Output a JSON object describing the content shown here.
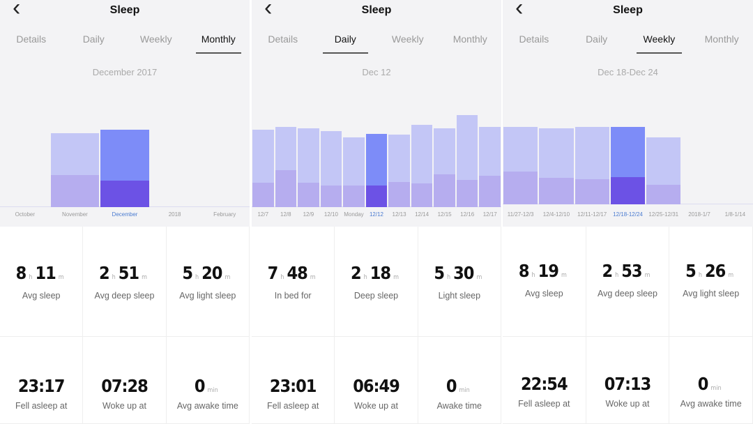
{
  "colors": {
    "light": "#c3c6f6",
    "deep": "#b6adef",
    "sel_light": "#7d8cf8",
    "sel_deep": "#6c52e5"
  },
  "panels": [
    {
      "title": "Sleep",
      "tabs": [
        "Details",
        "Daily",
        "Weekly",
        "Monthly"
      ],
      "active": 3,
      "date": "December 2017",
      "bars": [
        {
          "label": "October",
          "total": 0,
          "deep": 0
        },
        {
          "label": "November",
          "total": 7.85,
          "deep": 3.4
        },
        {
          "label": "December",
          "total": 8.2,
          "deep": 2.85,
          "selected": true
        },
        {
          "label": "2018",
          "total": 0,
          "deep": 0
        },
        {
          "label": "February",
          "total": 0,
          "deep": 0
        }
      ],
      "stats": [
        {
          "h": "8",
          "m": "11",
          "label": "Avg sleep"
        },
        {
          "h": "2",
          "m": "51",
          "label": "Avg deep sleep"
        },
        {
          "h": "5",
          "m": "20",
          "label": "Avg light sleep"
        },
        {
          "time": "23:17",
          "label": "Fell asleep at"
        },
        {
          "time": "07:28",
          "label": "Woke up at"
        },
        {
          "min": "0",
          "label": "Avg awake time"
        }
      ]
    },
    {
      "title": "Sleep",
      "tabs": [
        "Details",
        "Daily",
        "Weekly",
        "Monthly"
      ],
      "active": 1,
      "date": "Dec 12",
      "bars": [
        {
          "label": "12/7",
          "total": 8.2,
          "deep": 2.6
        },
        {
          "label": "12/8",
          "total": 8.5,
          "deep": 3.9
        },
        {
          "label": "12/9",
          "total": 8.4,
          "deep": 2.6
        },
        {
          "label": "12/10",
          "total": 8.1,
          "deep": 2.3
        },
        {
          "label": "Monday",
          "total": 7.4,
          "deep": 2.3
        },
        {
          "label": "12/12",
          "total": 7.8,
          "deep": 2.3,
          "selected": true
        },
        {
          "label": "12/13",
          "total": 7.7,
          "deep": 2.7
        },
        {
          "label": "12/14",
          "total": 8.75,
          "deep": 2.5
        },
        {
          "label": "12/15",
          "total": 8.4,
          "deep": 3.5
        },
        {
          "label": "12/16",
          "total": 9.8,
          "deep": 2.9
        },
        {
          "label": "12/17",
          "total": 8.5,
          "deep": 3.3
        }
      ],
      "stats": [
        {
          "h": "7",
          "m": "48",
          "label": "In bed for"
        },
        {
          "h": "2",
          "m": "18",
          "label": "Deep sleep"
        },
        {
          "h": "5",
          "m": "30",
          "label": "Light sleep"
        },
        {
          "time": "23:01",
          "label": "Fell asleep at"
        },
        {
          "time": "06:49",
          "label": "Woke up at"
        },
        {
          "min": "0",
          "label": "Awake time"
        }
      ]
    },
    {
      "title": "Sleep",
      "tabs": [
        "Details",
        "Daily",
        "Weekly",
        "Monthly"
      ],
      "active": 2,
      "date": "Dec 18-Dec 24",
      "bars": [
        {
          "label": "11/27-12/3",
          "total": 8.2,
          "deep": 3.5
        },
        {
          "label": "12/4-12/10",
          "total": 8.1,
          "deep": 2.8
        },
        {
          "label": "12/11-12/17",
          "total": 8.2,
          "deep": 2.7
        },
        {
          "label": "12/18-12/24",
          "total": 8.2,
          "deep": 2.9,
          "selected": true
        },
        {
          "label": "12/25-12/31",
          "total": 7.1,
          "deep": 2.1
        },
        {
          "label": "2018-1/7",
          "total": 0,
          "deep": 0
        },
        {
          "label": "1/8-1/14",
          "total": 0,
          "deep": 0
        }
      ],
      "stats": [
        {
          "h": "8",
          "m": "19",
          "label": "Avg sleep"
        },
        {
          "h": "2",
          "m": "53",
          "label": "Avg deep sleep"
        },
        {
          "h": "5",
          "m": "26",
          "label": "Avg light sleep"
        },
        {
          "time": "22:54",
          "label": "Fell asleep at"
        },
        {
          "time": "07:13",
          "label": "Woke up at"
        },
        {
          "min": "0",
          "label": "Avg awake time"
        }
      ]
    }
  ],
  "units": {
    "h": "h",
    "m": "m",
    "min": "min"
  },
  "back_icon": "chevron-left-icon"
}
